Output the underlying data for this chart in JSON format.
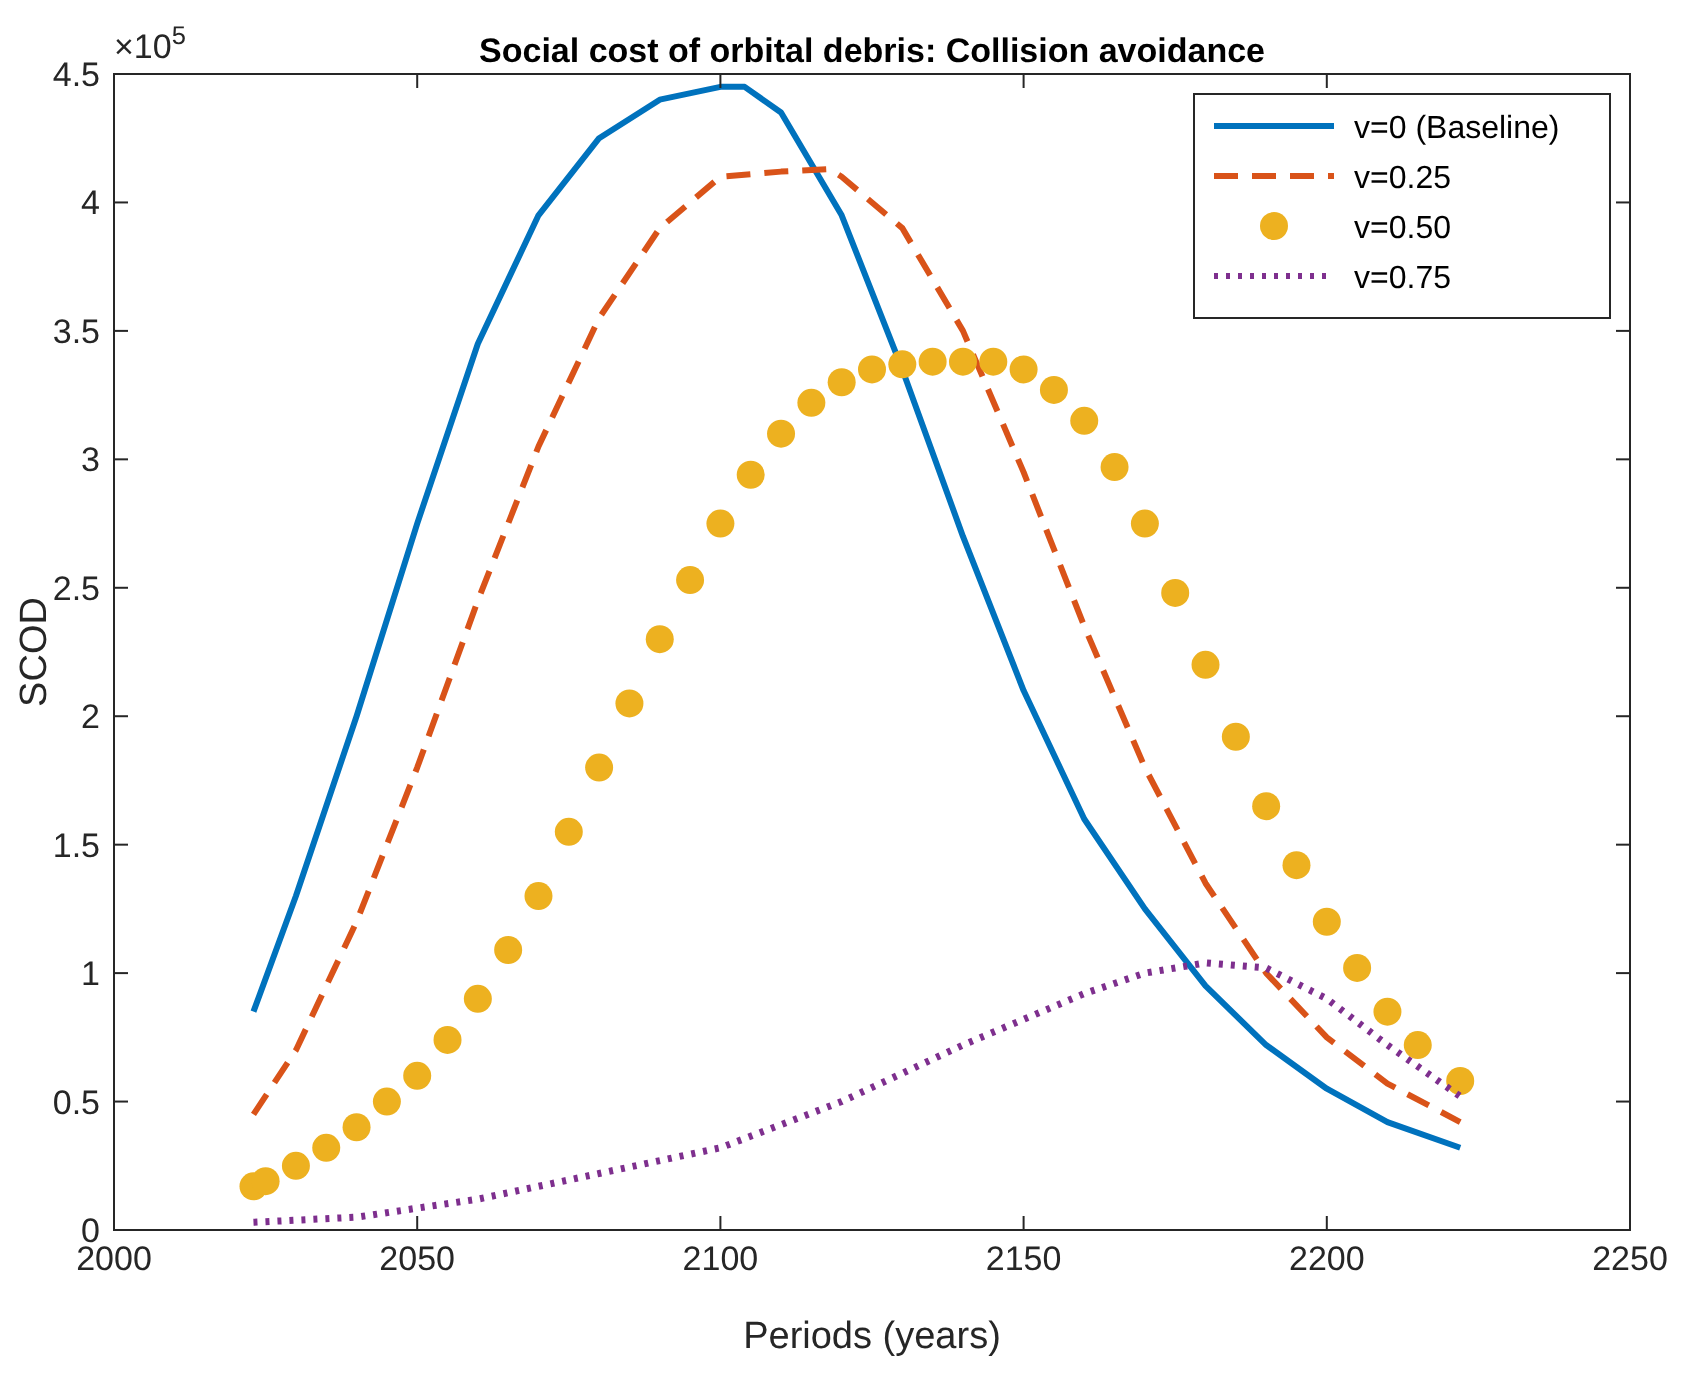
{
  "chart_data": {
    "type": "line",
    "title": "Social cost of orbital debris: Collision avoidance",
    "xlabel": "Periods (years)",
    "ylabel": "SCOD",
    "annotations": [
      "×10$^{5}$"
    ],
    "xlim": [
      2000,
      2250
    ],
    "xticks": [
      2000,
      2050,
      2100,
      2150,
      2200,
      2250
    ],
    "ylim": [
      0,
      4.5
    ],
    "yticks": [
      0,
      0.5,
      1,
      1.5,
      2,
      2.5,
      3,
      3.5,
      4,
      4.5
    ],
    "grid": false,
    "legend": "top right",
    "series": [
      {
        "name": "v=0 (Baseline)",
        "color": "#0072bd",
        "line_style": "solid",
        "marker": "none",
        "x": [
          2023,
          2030,
          2040,
          2050,
          2060,
          2070,
          2080,
          2090,
          2100,
          2104,
          2110,
          2120,
          2130,
          2140,
          2150,
          2160,
          2170,
          2180,
          2190,
          2200,
          2210,
          2222
        ],
        "values": [
          0.85,
          1.3,
          2.0,
          2.75,
          3.45,
          3.95,
          4.25,
          4.4,
          4.45,
          4.45,
          4.35,
          3.95,
          3.35,
          2.7,
          2.1,
          1.6,
          1.25,
          0.95,
          0.72,
          0.55,
          0.42,
          0.32
        ]
      },
      {
        "name": "v=0.25",
        "color": "#d95319",
        "line_style": "dashed",
        "marker": "none",
        "x": [
          2023,
          2030,
          2040,
          2050,
          2060,
          2070,
          2080,
          2090,
          2100,
          2110,
          2118,
          2120,
          2130,
          2140,
          2150,
          2160,
          2170,
          2180,
          2190,
          2200,
          2210,
          2222
        ],
        "values": [
          0.45,
          0.7,
          1.2,
          1.8,
          2.45,
          3.05,
          3.55,
          3.9,
          4.1,
          4.12,
          4.13,
          4.1,
          3.9,
          3.5,
          2.95,
          2.35,
          1.8,
          1.35,
          1.0,
          0.75,
          0.57,
          0.42
        ]
      },
      {
        "name": "v=0.50",
        "color": "#edb120",
        "type": "scatter",
        "marker": "circle",
        "x": [
          2023,
          2025,
          2030,
          2035,
          2040,
          2045,
          2050,
          2055,
          2060,
          2065,
          2070,
          2075,
          2080,
          2085,
          2090,
          2095,
          2100,
          2105,
          2110,
          2115,
          2120,
          2125,
          2130,
          2135,
          2140,
          2145,
          2150,
          2155,
          2160,
          2165,
          2170,
          2175,
          2180,
          2185,
          2190,
          2195,
          2200,
          2205,
          2210,
          2215,
          2222
        ],
        "values": [
          0.17,
          0.19,
          0.25,
          0.32,
          0.4,
          0.5,
          0.6,
          0.74,
          0.9,
          1.09,
          1.3,
          1.55,
          1.8,
          2.05,
          2.3,
          2.53,
          2.75,
          2.94,
          3.1,
          3.22,
          3.3,
          3.35,
          3.37,
          3.38,
          3.38,
          3.38,
          3.35,
          3.27,
          3.15,
          2.97,
          2.75,
          2.48,
          2.2,
          1.92,
          1.65,
          1.42,
          1.2,
          1.02,
          0.85,
          0.72,
          0.58
        ]
      },
      {
        "name": "v=0.75",
        "color": "#7e2f8e",
        "line_style": "dotted",
        "marker": "none",
        "x": [
          2023,
          2040,
          2060,
          2080,
          2100,
          2120,
          2140,
          2160,
          2170,
          2180,
          2190,
          2200,
          2210,
          2222
        ],
        "values": [
          0.03,
          0.05,
          0.12,
          0.22,
          0.32,
          0.5,
          0.72,
          0.92,
          1.0,
          1.04,
          1.02,
          0.9,
          0.72,
          0.52
        ]
      }
    ]
  }
}
